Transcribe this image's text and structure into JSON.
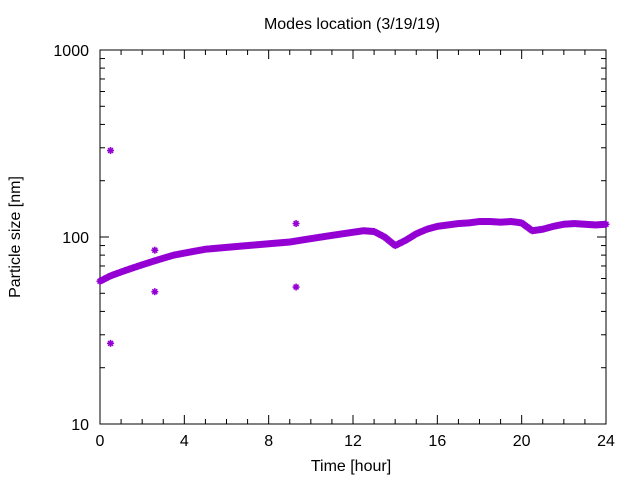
{
  "chart_data": {
    "type": "scatter",
    "title": "Modes location (3/19/19)",
    "xlabel": "Time [hour]",
    "ylabel": "Particle size [nm]",
    "xlim": [
      0,
      24
    ],
    "ylim": [
      10,
      1000
    ],
    "yscale": "log",
    "xticks": [
      0,
      4,
      8,
      12,
      16,
      20,
      24
    ],
    "xtick_labels": [
      "0",
      "4",
      "8",
      "12",
      "16",
      "20",
      "24"
    ],
    "yticks": [
      10,
      100,
      1000
    ],
    "ytick_labels": [
      "10",
      "100",
      "1000"
    ],
    "grid": false,
    "marker": "asterisk",
    "color": "#9400d3",
    "series": [
      {
        "x": [
          0.0,
          0.5,
          1.0,
          1.5,
          2.0,
          2.5,
          3.0,
          3.5,
          4.0,
          4.5,
          5.0,
          5.5,
          6.0,
          6.5,
          7.0,
          7.5,
          8.0,
          8.5,
          9.0,
          9.5,
          10.0,
          10.5,
          11.0,
          11.5,
          12.0,
          12.5,
          13.0,
          13.5,
          14.0,
          14.5,
          15.0,
          15.5,
          16.0,
          16.5,
          17.0,
          17.5,
          18.0,
          18.5,
          19.0,
          19.5,
          20.0,
          20.5,
          21.0,
          21.5,
          22.0,
          22.5,
          23.0,
          23.5,
          24.0
        ],
        "y": [
          58,
          62,
          65,
          68,
          71,
          74,
          77,
          80,
          82,
          84,
          86,
          87,
          88,
          89,
          90,
          91,
          92,
          93,
          94,
          96,
          98,
          100,
          102,
          104,
          106,
          108,
          107,
          100,
          90,
          96,
          104,
          110,
          114,
          116,
          118,
          119,
          121,
          121,
          120,
          121,
          119,
          108,
          110,
          114,
          117,
          118,
          117,
          116,
          117
        ]
      },
      {
        "x": [
          0.5,
          0.5,
          2.6,
          2.6,
          9.3,
          9.3
        ],
        "y": [
          290,
          27,
          85,
          51,
          118,
          54
        ]
      }
    ]
  }
}
